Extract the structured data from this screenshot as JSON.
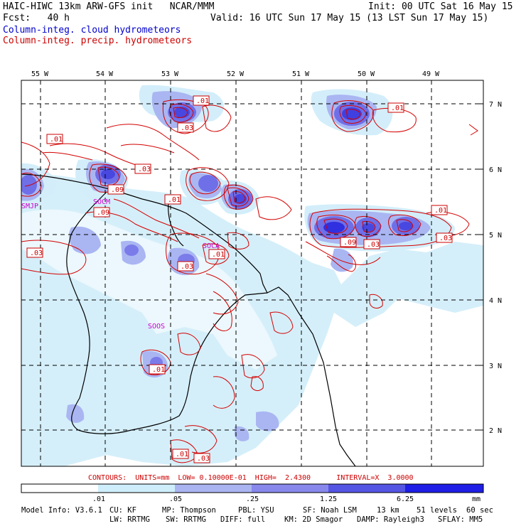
{
  "header": {
    "title": "HAIC-HIWC 13km ARW-GFS init   NCAR/MMM",
    "init": "Init: 00 UTC Sat 16 May 15",
    "fcst": "Fcst:   40 h",
    "valid": "Valid: 16 UTC Sun 17 May 15 (13 LST Sun 17 May 15)",
    "field1": "Column-integ. cloud hydrometeors",
    "field2": "Column-integ. precip. hydrometeors"
  },
  "map": {
    "lon_labels": [
      "55 W",
      "54 W",
      "53 W",
      "52 W",
      "51 W",
      "50 W",
      "49 W"
    ],
    "lat_labels": [
      "7 N",
      "6 N",
      "5 N",
      "4 N",
      "3 N",
      "2 N"
    ],
    "stations": [
      "SMJP",
      "SOCM",
      "SOCA",
      "SOOS"
    ],
    "contour_labels": [
      ".01",
      ".03",
      ".01",
      ".03",
      ".09",
      ".09",
      ".01",
      ".03",
      ".01",
      ".03",
      ".09",
      ".03",
      ".01",
      ".03",
      ".01",
      ".01",
      ".01",
      ".03"
    ]
  },
  "contour_info": "CONTOURS:  UNITS=mm  LOW= 0.10000E-01  HIGH=  2.4300      INTERVAL=X  3.0000",
  "colorbar": {
    "labels": [
      ".01",
      ".05",
      ".25",
      "1.25",
      "6.25"
    ],
    "units": "mm",
    "colors": [
      "#ffffff",
      "#cfeefc",
      "#aab4f0",
      "#8888ec",
      "#5555e4",
      "#1e1ee6"
    ]
  },
  "footer": {
    "line1": [
      "Model Info: V3.6.1",
      "CU: KF",
      "MP: Thompson",
      "PBL: YSU",
      "SF: Noah LSM",
      "13 km",
      "51 levels",
      "60 sec"
    ],
    "line2": [
      "LW: RRTMG",
      "SW: RRTMG",
      "DIFF: full",
      "KM: 2D Smagor",
      "DAMP: Rayleigh3",
      "SFLAY: MM5"
    ]
  }
}
